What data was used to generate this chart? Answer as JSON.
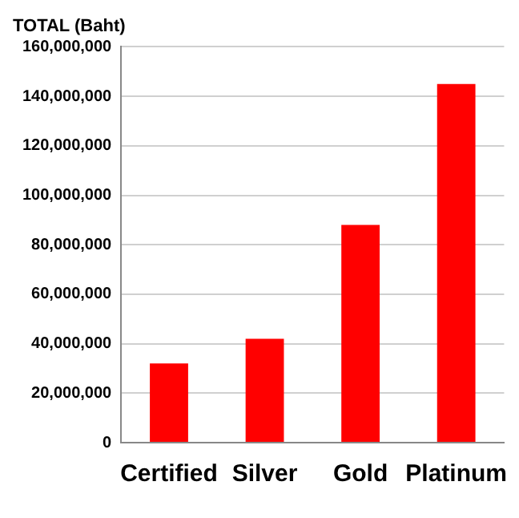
{
  "chart_data": {
    "type": "bar",
    "ylabel": "TOTAL (Baht)",
    "categories": [
      "Certified",
      "Silver",
      "Gold",
      "Platinum"
    ],
    "values": [
      32000000,
      42000000,
      88000000,
      145000000
    ],
    "color": "#ff0000",
    "ylim": [
      0,
      160000000
    ],
    "yticks": [
      0,
      {
        "value": 20000000,
        "label": "20,000,000"
      },
      {
        "value": 40000000,
        "label": "40,000,000"
      },
      {
        "value": 60000000,
        "label": "60,000,000"
      },
      {
        "value": 80000000,
        "label": "80,000,000"
      },
      {
        "value": 100000000,
        "label": "100,000,000"
      },
      {
        "value": 120000000,
        "label": "120,000,000"
      },
      {
        "value": 140000000,
        "label": "140,000,000"
      },
      {
        "value": 160000000,
        "label": "160,000,000"
      }
    ],
    "grid": "y",
    "legend": false
  }
}
